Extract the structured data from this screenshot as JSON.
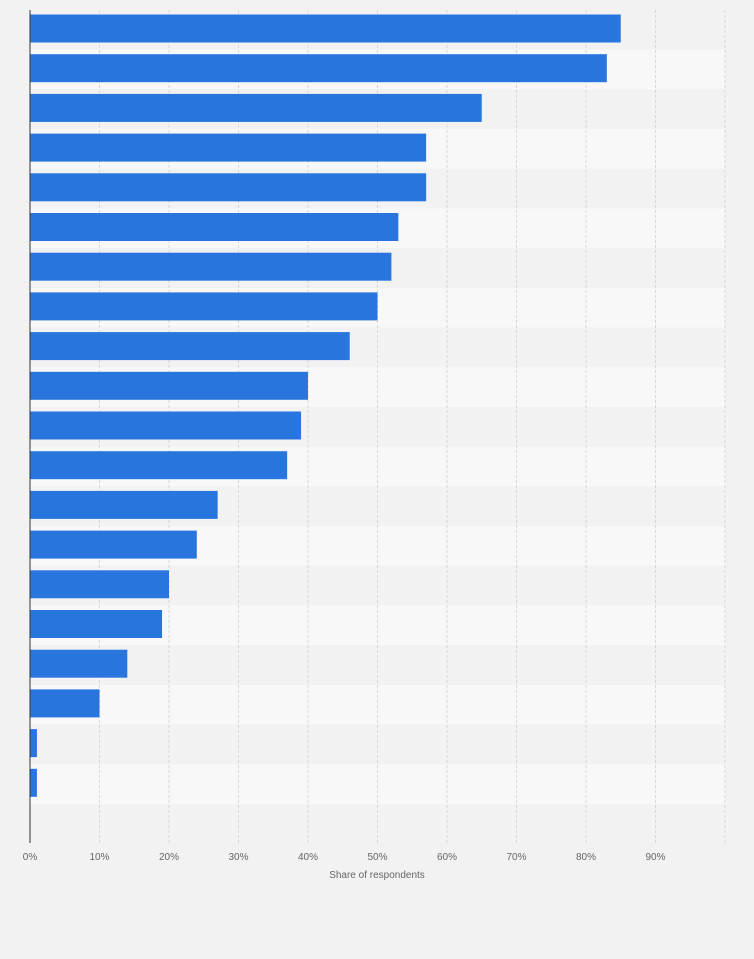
{
  "chart_data": {
    "type": "bar",
    "orientation": "horizontal",
    "categories": [
      "",
      "",
      "",
      "",
      "",
      "",
      "",
      "",
      "",
      "",
      "",
      "",
      "",
      "",
      "",
      "",
      "",
      "",
      "",
      ""
    ],
    "values": [
      85,
      83,
      65,
      57,
      57,
      53,
      52,
      50,
      46,
      40,
      39,
      37,
      27,
      24,
      20,
      19,
      14,
      10,
      1,
      1
    ],
    "title": "",
    "xlabel": "Share of respondents",
    "ylabel": "",
    "xlim": [
      0,
      100
    ],
    "x_ticks": [
      "0%",
      "10%",
      "20%",
      "30%",
      "40%",
      "50%",
      "60%",
      "70%",
      "80%",
      "90%"
    ],
    "grid": true,
    "bar_color": "#2876dd"
  }
}
